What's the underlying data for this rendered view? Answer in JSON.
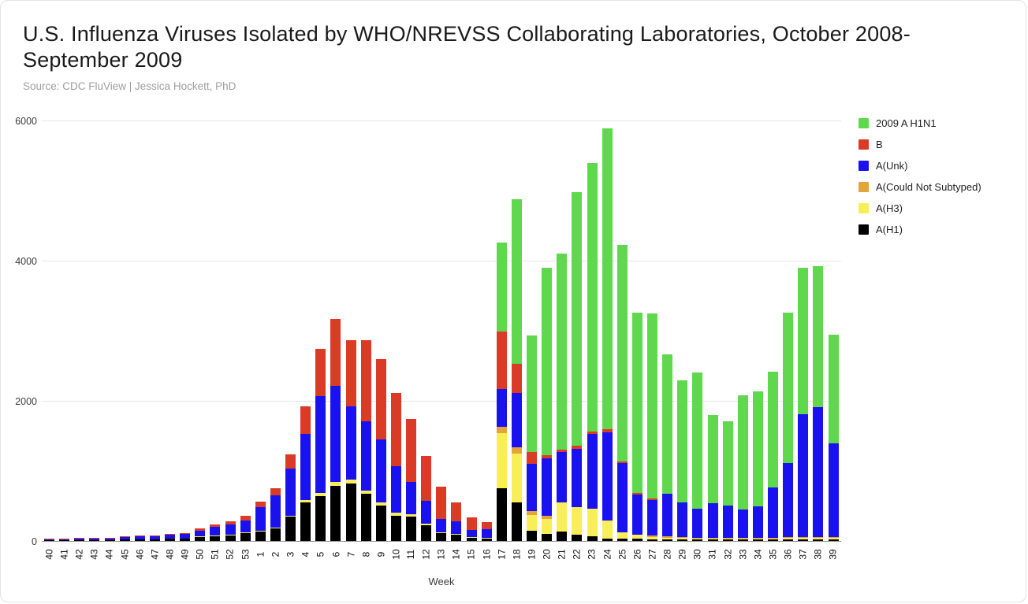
{
  "title": "U.S. Influenza Viruses Isolated by WHO/NREVSS Collaborating Laboratories, October 2008-September 2009",
  "subtitle": "Source: CDC FluView | Jessica Hockett, PhD",
  "y_ticks": [
    "0",
    "2000",
    "4000",
    "6000"
  ],
  "x_axis_title": "Week",
  "legend": {
    "position": "top-right",
    "items": [
      {
        "label": "2009 A H1N1",
        "color": "#5fd84e"
      },
      {
        "label": "B",
        "color": "#da3b26"
      },
      {
        "label": "A(Unk)",
        "color": "#1a12ee"
      },
      {
        "label": "A(Could Not Subtyped)",
        "color": "#e4a33c"
      },
      {
        "label": "A(H3)",
        "color": "#f8ee58"
      },
      {
        "label": "A(H1)",
        "color": "#000000"
      }
    ]
  },
  "chart_data": {
    "type": "bar",
    "stacked": true,
    "title": "U.S. Influenza Viruses Isolated by WHO/NREVSS Collaborating Laboratories, October 2008-September 2009",
    "xlabel": "Week",
    "ylabel": "",
    "ylim": [
      0,
      6000
    ],
    "y_tick_values": [
      0,
      2000,
      4000,
      6000
    ],
    "grid": true,
    "legend_position": "top-right",
    "categories": [
      "40",
      "41",
      "42",
      "43",
      "44",
      "45",
      "46",
      "47",
      "48",
      "49",
      "50",
      "51",
      "52",
      "53",
      "1",
      "2",
      "3",
      "4",
      "5",
      "6",
      "7",
      "8",
      "9",
      "10",
      "11",
      "12",
      "13",
      "14",
      "15",
      "16",
      "17",
      "18",
      "19",
      "20",
      "21",
      "22",
      "23",
      "24",
      "25",
      "26",
      "27",
      "28",
      "29",
      "30",
      "31",
      "32",
      "33",
      "34",
      "35",
      "36",
      "37",
      "38",
      "39"
    ],
    "stack_order_note": "series listed bottom-to-top of stack",
    "series": [
      {
        "name": "A(H1)",
        "color": "#000000",
        "values": [
          5,
          5,
          5,
          15,
          10,
          20,
          25,
          25,
          30,
          35,
          55,
          70,
          80,
          110,
          140,
          180,
          345,
          550,
          640,
          790,
          825,
          675,
          510,
          365,
          350,
          230,
          110,
          85,
          50,
          30,
          750,
          550,
          145,
          105,
          140,
          90,
          70,
          35,
          30,
          30,
          20,
          25,
          20,
          20,
          20,
          20,
          20,
          20,
          20,
          25,
          25,
          25,
          25
        ]
      },
      {
        "name": "A(H3)",
        "color": "#f8ee58",
        "values": [
          0,
          0,
          0,
          0,
          0,
          0,
          0,
          0,
          0,
          0,
          5,
          5,
          5,
          10,
          10,
          10,
          20,
          40,
          45,
          55,
          55,
          45,
          45,
          35,
          30,
          15,
          10,
          10,
          5,
          10,
          790,
          695,
          225,
          210,
          410,
          395,
          395,
          260,
          90,
          55,
          40,
          25,
          20,
          15,
          15,
          15,
          15,
          15,
          15,
          20,
          20,
          20,
          20
        ]
      },
      {
        "name": "A(Could Not Subtyped)",
        "color": "#e4a33c",
        "values": [
          0,
          0,
          0,
          0,
          0,
          0,
          0,
          0,
          0,
          0,
          0,
          0,
          0,
          0,
          0,
          0,
          0,
          0,
          0,
          0,
          0,
          0,
          0,
          0,
          0,
          0,
          0,
          0,
          0,
          0,
          95,
          95,
          55,
          40,
          0,
          0,
          0,
          0,
          0,
          0,
          20,
          20,
          20,
          15,
          15,
          15,
          15,
          15,
          15,
          15,
          15,
          15,
          15
        ]
      },
      {
        "name": "A(Unk)",
        "color": "#1a12ee",
        "values": [
          5,
          15,
          20,
          20,
          25,
          40,
          40,
          45,
          55,
          65,
          85,
          120,
          145,
          175,
          330,
          460,
          665,
          940,
          1380,
          1365,
          1045,
          990,
          900,
          665,
          465,
          330,
          190,
          185,
          95,
          130,
          530,
          770,
          675,
          820,
          715,
          835,
          1060,
          1260,
          990,
          580,
          505,
          600,
          495,
          415,
          495,
          460,
          395,
          450,
          715,
          1050,
          1750,
          1850,
          1330
        ]
      },
      {
        "name": "B",
        "color": "#da3b26",
        "values": [
          15,
          5,
          8,
          10,
          10,
          5,
          5,
          8,
          8,
          10,
          30,
          40,
          45,
          60,
          80,
          100,
          205,
          395,
          675,
          960,
          940,
          1155,
          1140,
          1050,
          895,
          640,
          460,
          270,
          185,
          100,
          825,
          415,
          170,
          45,
          35,
          35,
          35,
          40,
          30,
          20,
          20,
          0,
          0,
          0,
          0,
          0,
          0,
          0,
          0,
          0,
          0,
          0,
          0
        ]
      },
      {
        "name": "2009 A H1N1",
        "color": "#5fd84e",
        "values": [
          0,
          0,
          0,
          0,
          0,
          0,
          0,
          0,
          0,
          0,
          0,
          0,
          0,
          0,
          0,
          0,
          0,
          0,
          0,
          0,
          0,
          0,
          0,
          0,
          0,
          0,
          0,
          0,
          0,
          0,
          1270,
          2350,
          1660,
          2680,
          2800,
          3625,
          3835,
          4295,
          3090,
          2575,
          2645,
          1990,
          1740,
          1940,
          1255,
          1195,
          1635,
          1635,
          1655,
          2145,
          2090,
          2010,
          1560
        ]
      }
    ]
  }
}
